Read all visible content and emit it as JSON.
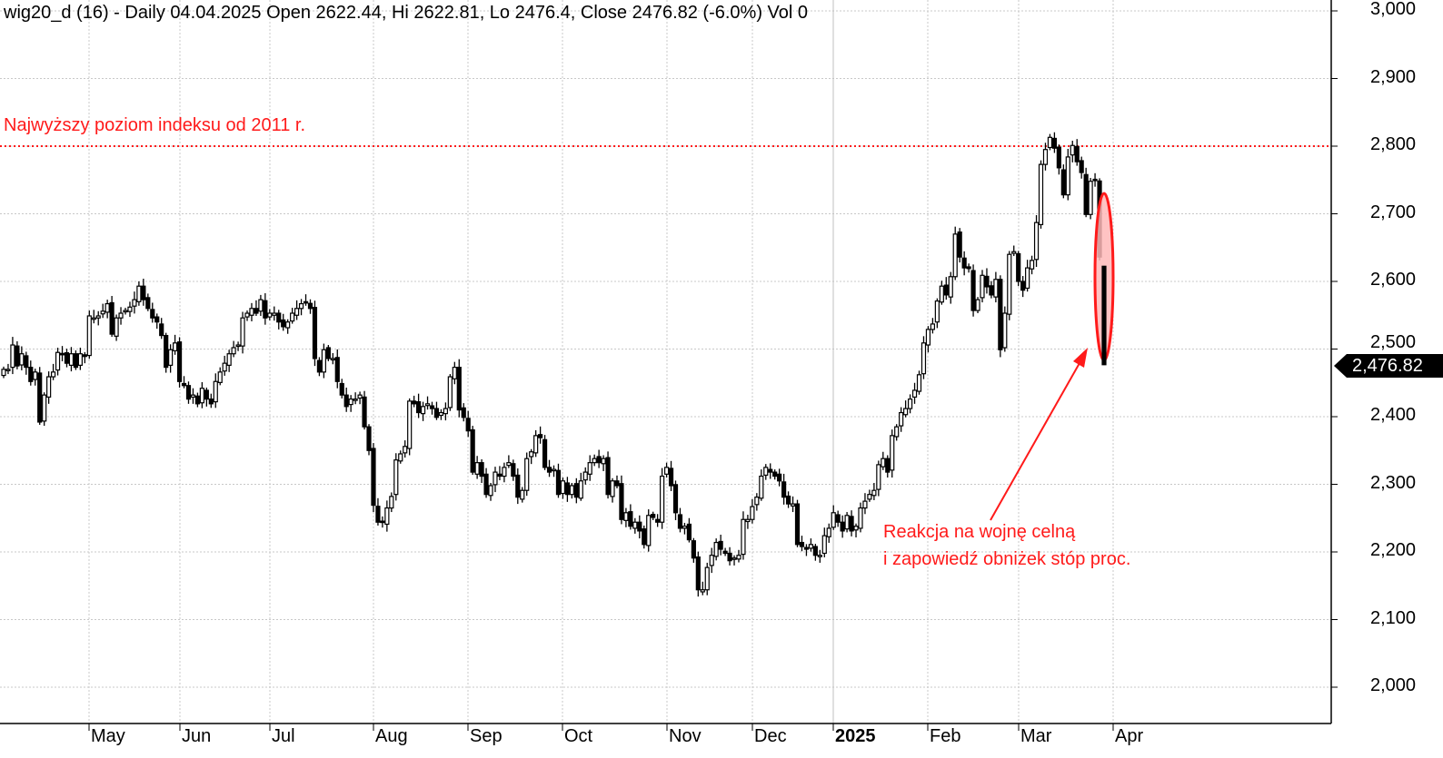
{
  "header": {
    "text": "wig20_d (16) - Daily 04.04.2025 Open 2622.44, Hi 2622.81, Lo 2476.4, Close 2476.82 (-6.0%) Vol 0"
  },
  "price_tag": "2,476.82",
  "annotations": {
    "resistance_label": "Najwyższy poziom indeksu od 2011 r.",
    "reaction_line1": "Reakcja na wojnę celną",
    "reaction_line2": "i zapowiedź obniżek stóp proc."
  },
  "colors": {
    "annotation": "#ff1a1a",
    "highlight_fill": "#ffb8b8",
    "up": "#ffffff",
    "down": "#000000"
  },
  "chart_data": {
    "type": "candlestick",
    "title": "wig20_d (16) - Daily",
    "ylim": [
      2000,
      3000
    ],
    "yticks": [
      "2,000",
      "2,100",
      "2,200",
      "2,300",
      "2,400",
      "2,500",
      "2,600",
      "2,700",
      "2,800",
      "2,900",
      "3,000"
    ],
    "ytick_values": [
      2000,
      2100,
      2200,
      2300,
      2400,
      2500,
      2600,
      2700,
      2800,
      2900,
      3000
    ],
    "months": [
      {
        "label": "May",
        "index": 19
      },
      {
        "label": "Jun",
        "index": 39
      },
      {
        "label": "Jul",
        "index": 59
      },
      {
        "label": "Aug",
        "index": 82
      },
      {
        "label": "Sep",
        "index": 103
      },
      {
        "label": "Oct",
        "index": 124
      },
      {
        "label": "Nov",
        "index": 147
      },
      {
        "label": "Dec",
        "index": 166
      },
      {
        "label": "2025",
        "index": 184,
        "bold": true
      },
      {
        "label": "Feb",
        "index": 205
      },
      {
        "label": "Mar",
        "index": 225
      },
      {
        "label": "Apr",
        "index": 246
      }
    ],
    "resistance_level": 2800,
    "closes": [
      2470,
      2470,
      2506,
      2475,
      2493,
      2473,
      2452,
      2466,
      2392,
      2432,
      2459,
      2466,
      2495,
      2493,
      2479,
      2493,
      2473,
      2493,
      2489,
      2549,
      2546,
      2549,
      2556,
      2567,
      2522,
      2546,
      2553,
      2557,
      2562,
      2573,
      2593,
      2573,
      2560,
      2546,
      2540,
      2520,
      2473,
      2499,
      2509,
      2452,
      2446,
      2426,
      2432,
      2419,
      2442,
      2426,
      2419,
      2452,
      2466,
      2479,
      2493,
      2502,
      2506,
      2546,
      2553,
      2560,
      2553,
      2573,
      2546,
      2553,
      2553,
      2540,
      2533,
      2540,
      2553,
      2560,
      2567,
      2569,
      2560,
      2486,
      2466,
      2499,
      2486,
      2486,
      2452,
      2432,
      2415,
      2426,
      2426,
      2432,
      2385,
      2350,
      2269,
      2244,
      2244,
      2265,
      2282,
      2336,
      2345,
      2356,
      2423,
      2419,
      2406,
      2415,
      2419,
      2412,
      2399,
      2406,
      2412,
      2459,
      2473,
      2410,
      2399,
      2379,
      2318,
      2332,
      2312,
      2285,
      2298,
      2318,
      2312,
      2325,
      2332,
      2312,
      2281,
      2291,
      2338,
      2348,
      2372,
      2369,
      2325,
      2318,
      2322,
      2285,
      2305,
      2285,
      2298,
      2281,
      2305,
      2318,
      2332,
      2338,
      2332,
      2338,
      2285,
      2305,
      2298,
      2248,
      2258,
      2238,
      2244,
      2231,
      2211,
      2254,
      2251,
      2244,
      2312,
      2325,
      2298,
      2258,
      2235,
      2238,
      2218,
      2191,
      2144,
      2144,
      2177,
      2195,
      2214,
      2204,
      2198,
      2187,
      2191,
      2195,
      2248,
      2248,
      2267,
      2281,
      2312,
      2325,
      2318,
      2312,
      2305,
      2281,
      2271,
      2271,
      2211,
      2208,
      2204,
      2211,
      2195,
      2195,
      2224,
      2235,
      2258,
      2244,
      2231,
      2254,
      2231,
      2238,
      2265,
      2275,
      2285,
      2291,
      2329,
      2338,
      2318,
      2372,
      2385,
      2406,
      2412,
      2426,
      2439,
      2462,
      2509,
      2529,
      2537,
      2571,
      2593,
      2580,
      2607,
      2670,
      2636,
      2620,
      2619,
      2557,
      2573,
      2609,
      2592,
      2580,
      2603,
      2499,
      2553,
      2640,
      2644,
      2600,
      2587,
      2620,
      2631,
      2687,
      2773,
      2795,
      2813,
      2797,
      2768,
      2728,
      2784,
      2801,
      2777,
      2761,
      2699,
      2748,
      2750,
      2636
    ],
    "last_candle": {
      "date": "04.04.2025",
      "open": 2622.44,
      "high": 2622.81,
      "low": 2476.4,
      "close": 2476.82,
      "change_pct": -6.0,
      "volume": 0
    }
  }
}
